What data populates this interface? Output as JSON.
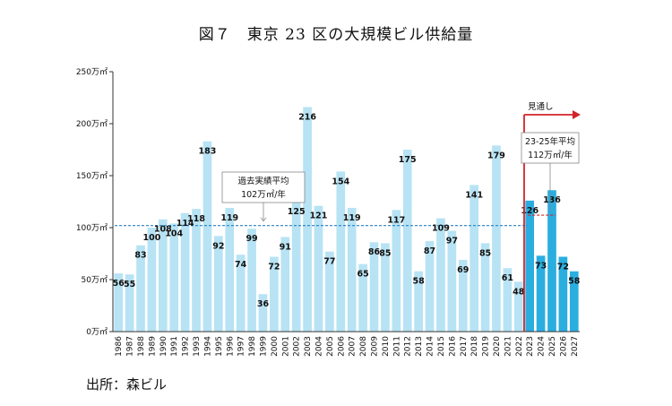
{
  "title": "図７　東京 23 区の大規模ビル供給量",
  "source": "出所：森ビル",
  "chart_data": {
    "type": "bar",
    "title": "図７　東京 23 区の大規模ビル供給量",
    "xlabel": "",
    "ylabel": "",
    "y_unit": "万㎡",
    "ylim": [
      0,
      250
    ],
    "yticks": [
      0,
      50,
      100,
      150,
      200,
      250
    ],
    "ytick_labels": [
      "0万㎡",
      "50万㎡",
      "100万㎡",
      "150万㎡",
      "200万㎡",
      "250万㎡"
    ],
    "grid": false,
    "categories": [
      "1986",
      "1987",
      "1988",
      "1989",
      "1990",
      "1991",
      "1992",
      "1993",
      "1994",
      "1995",
      "1996",
      "1997",
      "1998",
      "1999",
      "2000",
      "2001",
      "2002",
      "2003",
      "2004",
      "2005",
      "2006",
      "2007",
      "2008",
      "2009",
      "2010",
      "2011",
      "2012",
      "2013",
      "2014",
      "2015",
      "2016",
      "2017",
      "2018",
      "2019",
      "2020",
      "2021",
      "2022",
      "2023",
      "2024",
      "2025",
      "2026",
      "2027"
    ],
    "values": [
      56,
      55,
      83,
      100,
      108,
      104,
      114,
      118,
      183,
      92,
      119,
      74,
      99,
      36,
      72,
      91,
      125,
      216,
      121,
      77,
      154,
      119,
      65,
      86,
      85,
      117,
      175,
      58,
      87,
      109,
      97,
      69,
      141,
      85,
      179,
      61,
      48,
      126,
      73,
      136,
      72,
      58
    ],
    "forecast_start": "2023",
    "colors": {
      "actual": "#b7e3f4",
      "forecast": "#2aaee0",
      "average_line": "#2a7fc2",
      "forecast_arrow": "#d2232a"
    },
    "annotations": {
      "past_average": {
        "label_line1": "過去実績平均",
        "label_line2": "102万㎡/年",
        "value": 102
      },
      "forecast_average": {
        "label_line1": "23-25年平均",
        "label_line2": "112万㎡/年",
        "value": 112
      },
      "forecast_label": "見通し"
    }
  }
}
